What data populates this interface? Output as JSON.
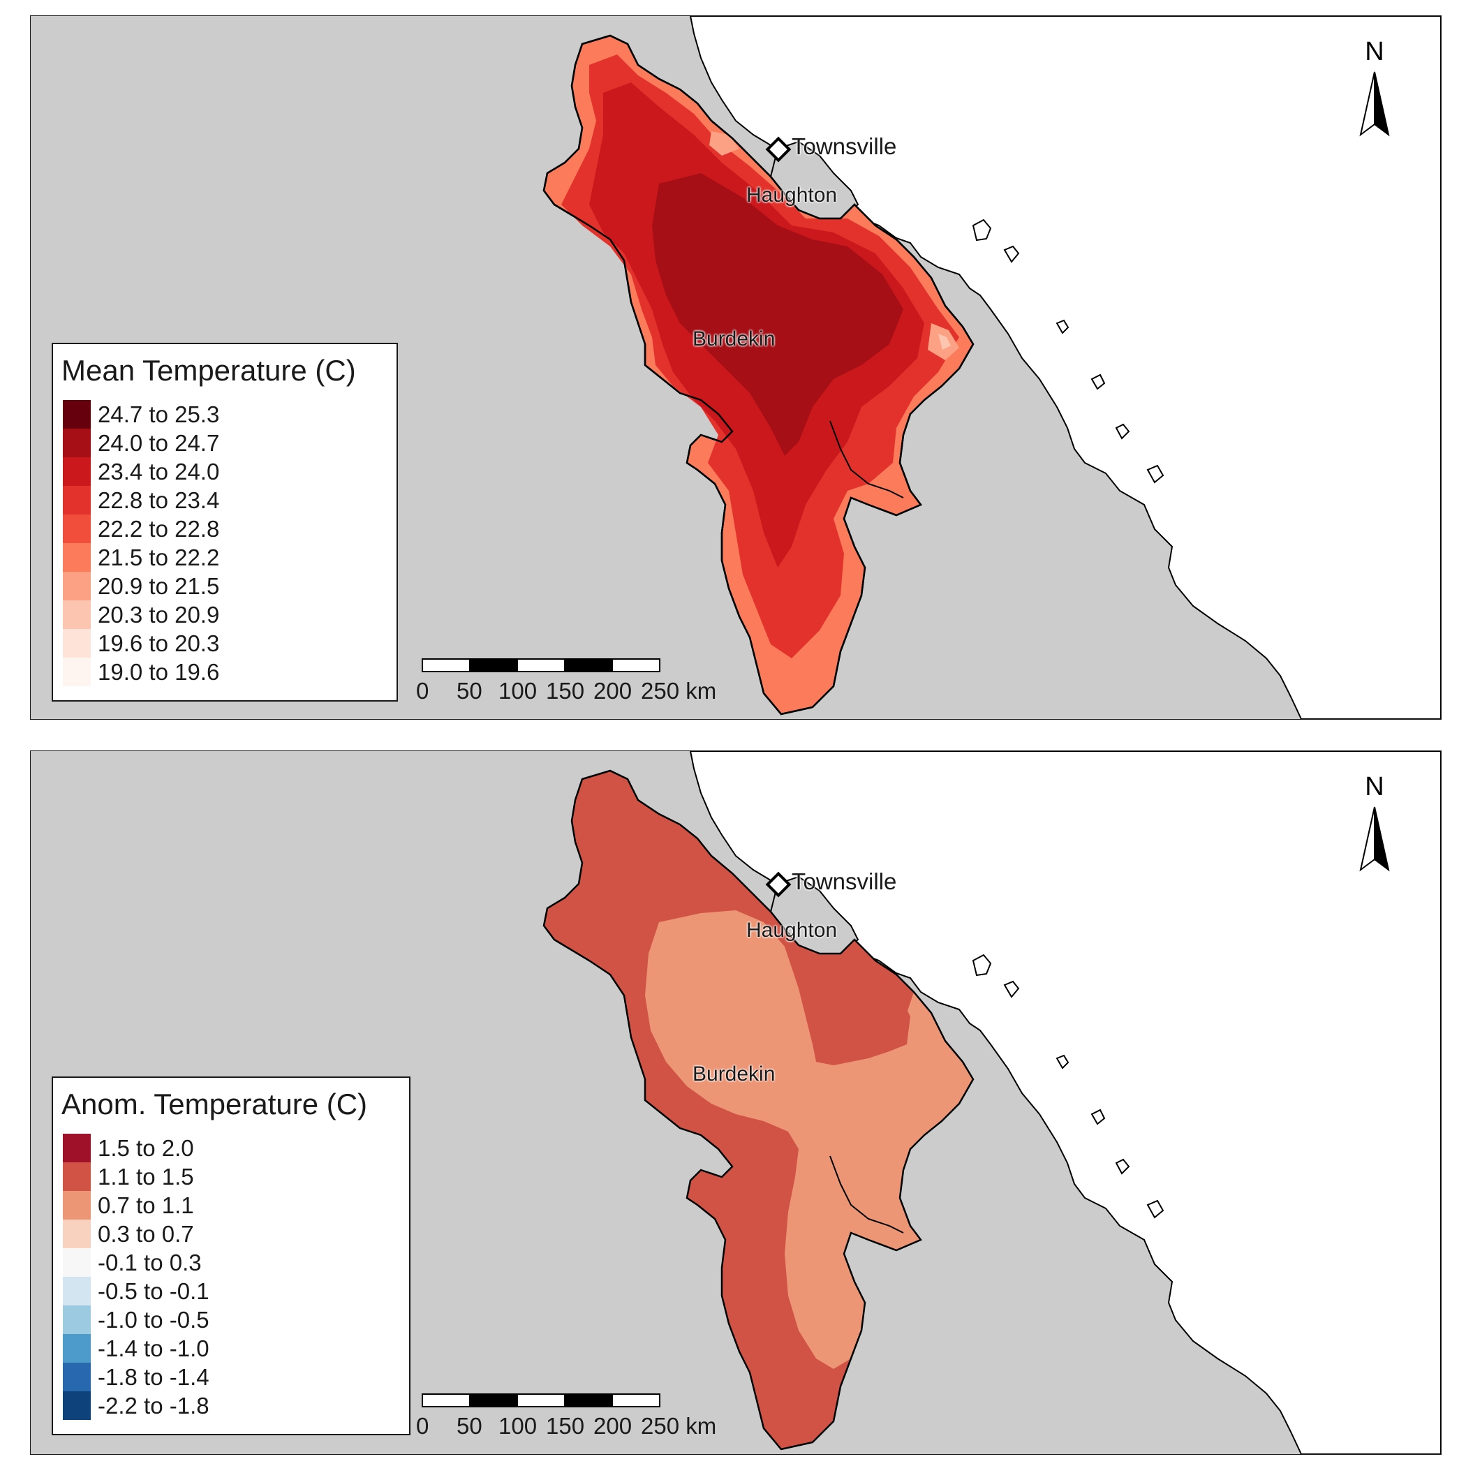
{
  "panels": [
    {
      "legend_title": "Mean Temperature (C)",
      "legend_items": [
        {
          "label": "24.7 to 25.3",
          "color": "#67000d"
        },
        {
          "label": "24.0 to 24.7",
          "color": "#a50f15"
        },
        {
          "label": "23.4 to 24.0",
          "color": "#cb181d"
        },
        {
          "label": "22.8 to 23.4",
          "color": "#e3322b"
        },
        {
          "label": "22.2 to 22.8",
          "color": "#f14f3c"
        },
        {
          "label": "21.5 to 22.2",
          "color": "#fb7b5b"
        },
        {
          "label": "20.9 to 21.5",
          "color": "#fca183"
        },
        {
          "label": "20.3 to 20.9",
          "color": "#fcc5b0"
        },
        {
          "label": "19.6 to 20.3",
          "color": "#fee3d9"
        },
        {
          "label": "19.0 to 19.6",
          "color": "#fff5f0"
        }
      ],
      "basin_fill": "#e3322b",
      "core_fill": "#a50f15",
      "mid_fill": "#cb181d",
      "edge_fill": "#fb7b5b"
    },
    {
      "legend_title": "Anom. Temperature (C)",
      "legend_items": [
        {
          "label": "1.5 to 2.0",
          "color": "#9e1128"
        },
        {
          "label": "1.1 to 1.5",
          "color": "#d05345"
        },
        {
          "label": "0.7 to 1.1",
          "color": "#ec9675"
        },
        {
          "label": "0.3 to 0.7",
          "color": "#f9d2bf"
        },
        {
          "label": "-0.1 to 0.3",
          "color": "#f7f7f7"
        },
        {
          "label": "-0.5 to -0.1",
          "color": "#d3e5f1"
        },
        {
          "label": "-1.0 to -0.5",
          "color": "#9ccae1"
        },
        {
          "label": "-1.4 to -1.0",
          "color": "#4d9bcb"
        },
        {
          "label": "-1.8 to -1.4",
          "color": "#2768af"
        },
        {
          "label": "-2.2 to -1.8",
          "color": "#0d427a"
        }
      ],
      "basin_fill": "#d05345",
      "lobe_fill": "#ec9675"
    }
  ],
  "labels": {
    "townsville": "Townsville",
    "haughton": "Haughton",
    "burdekin": "Burdekin",
    "north": "N"
  },
  "scalebar": {
    "ticks": [
      "0",
      "50",
      "100",
      "150",
      "200",
      "250 km"
    ]
  },
  "colors": {
    "background": "#cccccc",
    "sea": "#ffffff",
    "outline": "#000000",
    "haughton_fill": "#cccccc"
  }
}
